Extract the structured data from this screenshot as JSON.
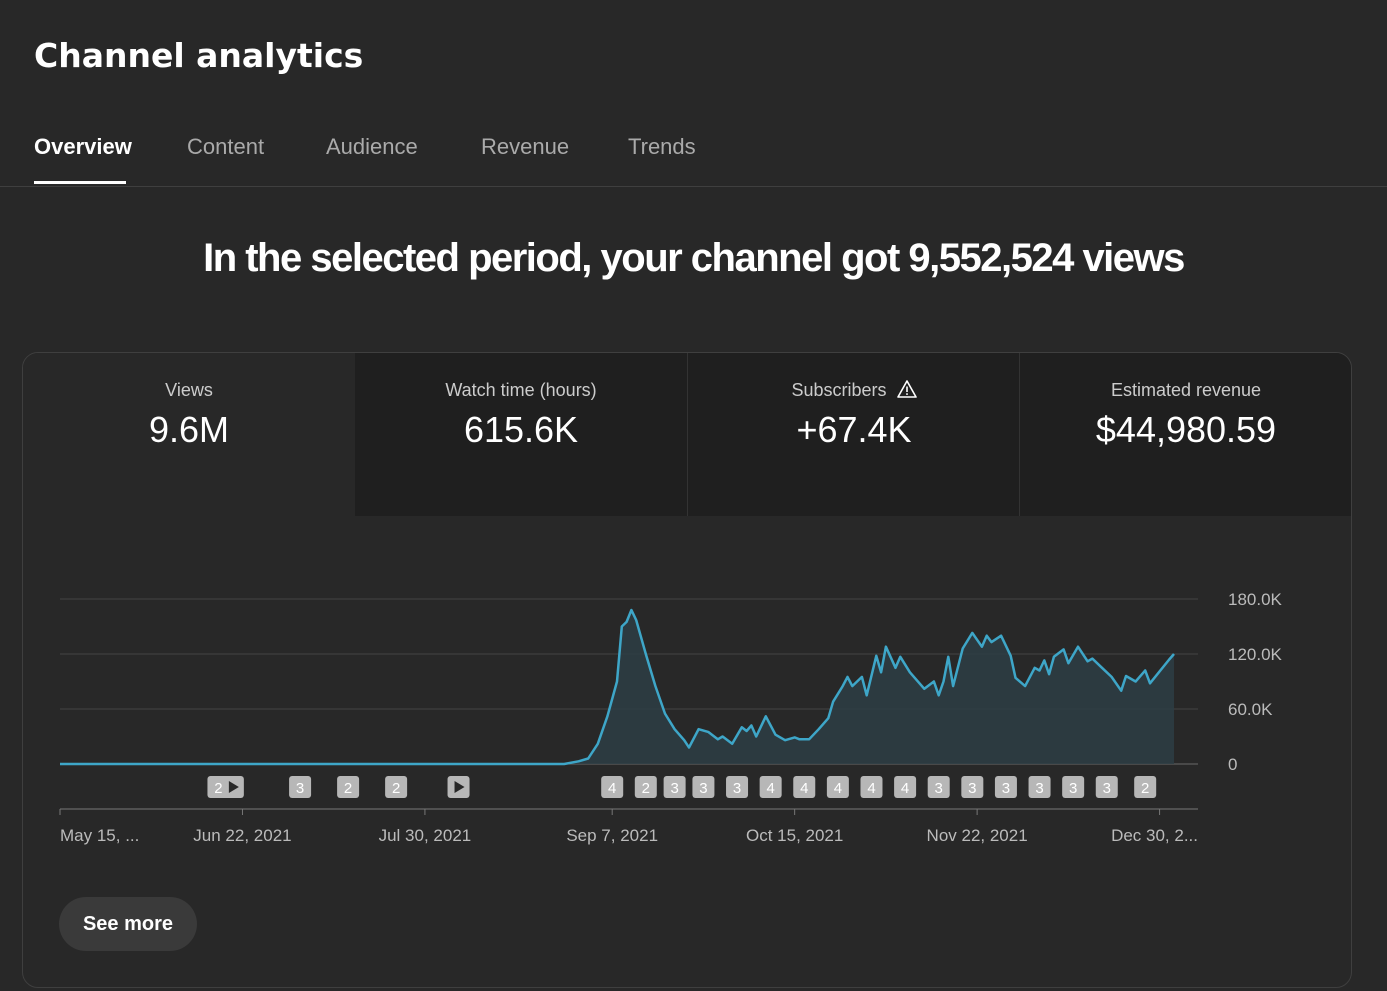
{
  "page": {
    "title": "Channel analytics"
  },
  "tabs": [
    {
      "label": "Overview",
      "active": true
    },
    {
      "label": "Content",
      "active": false
    },
    {
      "label": "Audience",
      "active": false
    },
    {
      "label": "Revenue",
      "active": false
    },
    {
      "label": "Trends",
      "active": false
    }
  ],
  "headline": "In the selected period, your channel got 9,552,524 views",
  "metrics": [
    {
      "label": "Views",
      "value": "9.6M",
      "selected": true
    },
    {
      "label": "Watch time (hours)",
      "value": "615.6K",
      "selected": false
    },
    {
      "label": "Subscribers",
      "value": "+67.4K",
      "selected": false,
      "warning_icon": "warning-triangle-icon"
    },
    {
      "label": "Estimated revenue",
      "value": "$44,980.59",
      "selected": false
    }
  ],
  "chart_data": {
    "type": "area",
    "ylim": [
      0,
      180000
    ],
    "y_ticks": [
      {
        "value": 0,
        "label": "0"
      },
      {
        "value": 60000,
        "label": "60.0K"
      },
      {
        "value": 120000,
        "label": "120.0K"
      },
      {
        "value": 180000,
        "label": "180.0K"
      }
    ],
    "x_range": [
      "2021-05-15",
      "2022-01-07"
    ],
    "x_ticks": [
      {
        "date": "2021-05-15",
        "label": "May 15, ..."
      },
      {
        "date": "2021-06-22",
        "label": "Jun 22, 2021"
      },
      {
        "date": "2021-07-30",
        "label": "Jul 30, 2021"
      },
      {
        "date": "2021-09-07",
        "label": "Sep 7, 2021"
      },
      {
        "date": "2021-10-15",
        "label": "Oct 15, 2021"
      },
      {
        "date": "2021-11-22",
        "label": "Nov 22, 2021"
      },
      {
        "date": "2021-12-30",
        "label": "Dec 30, 2..."
      }
    ],
    "series": [
      {
        "color": "#3ea6c8",
        "points": [
          [
            "2021-05-15",
            0
          ],
          [
            "2021-08-28",
            0
          ],
          [
            "2021-08-31",
            3000
          ],
          [
            "2021-09-02",
            6000
          ],
          [
            "2021-09-04",
            22000
          ],
          [
            "2021-09-06",
            52000
          ],
          [
            "2021-09-08",
            90000
          ],
          [
            "2021-09-09",
            150000
          ],
          [
            "2021-09-10",
            155000
          ],
          [
            "2021-09-11",
            168000
          ],
          [
            "2021-09-12",
            157000
          ],
          [
            "2021-09-14",
            120000
          ],
          [
            "2021-09-16",
            85000
          ],
          [
            "2021-09-18",
            55000
          ],
          [
            "2021-09-20",
            38000
          ],
          [
            "2021-09-22",
            26000
          ],
          [
            "2021-09-23",
            18000
          ],
          [
            "2021-09-25",
            38000
          ],
          [
            "2021-09-27",
            35000
          ],
          [
            "2021-09-29",
            27000
          ],
          [
            "2021-09-30",
            30000
          ],
          [
            "2021-10-02",
            22000
          ],
          [
            "2021-10-04",
            40000
          ],
          [
            "2021-10-05",
            36000
          ],
          [
            "2021-10-06",
            42000
          ],
          [
            "2021-10-07",
            30000
          ],
          [
            "2021-10-09",
            52000
          ],
          [
            "2021-10-11",
            32000
          ],
          [
            "2021-10-13",
            26000
          ],
          [
            "2021-10-15",
            29000
          ],
          [
            "2021-10-16",
            27000
          ],
          [
            "2021-10-18",
            27000
          ],
          [
            "2021-10-20",
            38000
          ],
          [
            "2021-10-22",
            50000
          ],
          [
            "2021-10-23",
            68000
          ],
          [
            "2021-10-25",
            85000
          ],
          [
            "2021-10-26",
            95000
          ],
          [
            "2021-10-27",
            85000
          ],
          [
            "2021-10-29",
            95000
          ],
          [
            "2021-10-30",
            75000
          ],
          [
            "2021-11-01",
            118000
          ],
          [
            "2021-11-02",
            100000
          ],
          [
            "2021-11-03",
            128000
          ],
          [
            "2021-11-05",
            105000
          ],
          [
            "2021-11-06",
            117000
          ],
          [
            "2021-11-08",
            100000
          ],
          [
            "2021-11-10",
            88000
          ],
          [
            "2021-11-11",
            82000
          ],
          [
            "2021-11-13",
            90000
          ],
          [
            "2021-11-14",
            75000
          ],
          [
            "2021-11-15",
            90000
          ],
          [
            "2021-11-16",
            117000
          ],
          [
            "2021-11-17",
            85000
          ],
          [
            "2021-11-19",
            126000
          ],
          [
            "2021-11-21",
            143000
          ],
          [
            "2021-11-23",
            128000
          ],
          [
            "2021-11-24",
            140000
          ],
          [
            "2021-11-25",
            133000
          ],
          [
            "2021-11-27",
            140000
          ],
          [
            "2021-11-29",
            118000
          ],
          [
            "2021-11-30",
            94000
          ],
          [
            "2021-12-02",
            85000
          ],
          [
            "2021-12-04",
            105000
          ],
          [
            "2021-12-05",
            102000
          ],
          [
            "2021-12-06",
            113000
          ],
          [
            "2021-12-07",
            98000
          ],
          [
            "2021-12-08",
            117000
          ],
          [
            "2021-12-10",
            125000
          ],
          [
            "2021-12-11",
            110000
          ],
          [
            "2021-12-13",
            128000
          ],
          [
            "2021-12-15",
            112000
          ],
          [
            "2021-12-16",
            115000
          ],
          [
            "2021-12-18",
            105000
          ],
          [
            "2021-12-20",
            95000
          ],
          [
            "2021-12-22",
            80000
          ],
          [
            "2021-12-23",
            96000
          ],
          [
            "2021-12-25",
            90000
          ],
          [
            "2021-12-27",
            102000
          ],
          [
            "2021-12-28",
            88000
          ],
          [
            "2022-01-01",
            114000
          ],
          [
            "2022-01-02",
            120000
          ]
        ]
      }
    ],
    "annotations": [
      {
        "date": "2021-06-17",
        "label": "2",
        "kind": "count"
      },
      {
        "date": "2021-06-20",
        "kind": "video"
      },
      {
        "date": "2021-07-04",
        "label": "3",
        "kind": "count"
      },
      {
        "date": "2021-07-14",
        "label": "2",
        "kind": "count"
      },
      {
        "date": "2021-07-24",
        "label": "2",
        "kind": "count"
      },
      {
        "date": "2021-08-06",
        "kind": "video"
      },
      {
        "date": "2021-09-07",
        "label": "4",
        "kind": "count"
      },
      {
        "date": "2021-09-14",
        "label": "2",
        "kind": "count"
      },
      {
        "date": "2021-09-20",
        "label": "3",
        "kind": "count"
      },
      {
        "date": "2021-09-26",
        "label": "3",
        "kind": "count"
      },
      {
        "date": "2021-10-03",
        "label": "3",
        "kind": "count"
      },
      {
        "date": "2021-10-10",
        "label": "4",
        "kind": "count"
      },
      {
        "date": "2021-10-17",
        "label": "4",
        "kind": "count"
      },
      {
        "date": "2021-10-24",
        "label": "4",
        "kind": "count"
      },
      {
        "date": "2021-10-31",
        "label": "4",
        "kind": "count"
      },
      {
        "date": "2021-11-07",
        "label": "4",
        "kind": "count"
      },
      {
        "date": "2021-11-14",
        "label": "3",
        "kind": "count"
      },
      {
        "date": "2021-11-21",
        "label": "3",
        "kind": "count"
      },
      {
        "date": "2021-11-28",
        "label": "3",
        "kind": "count"
      },
      {
        "date": "2021-12-05",
        "label": "3",
        "kind": "count"
      },
      {
        "date": "2021-12-12",
        "label": "3",
        "kind": "count"
      },
      {
        "date": "2021-12-19",
        "label": "3",
        "kind": "count"
      },
      {
        "date": "2021-12-27",
        "label": "2",
        "kind": "count"
      }
    ]
  },
  "footer": {
    "see_more_label": "See more"
  }
}
